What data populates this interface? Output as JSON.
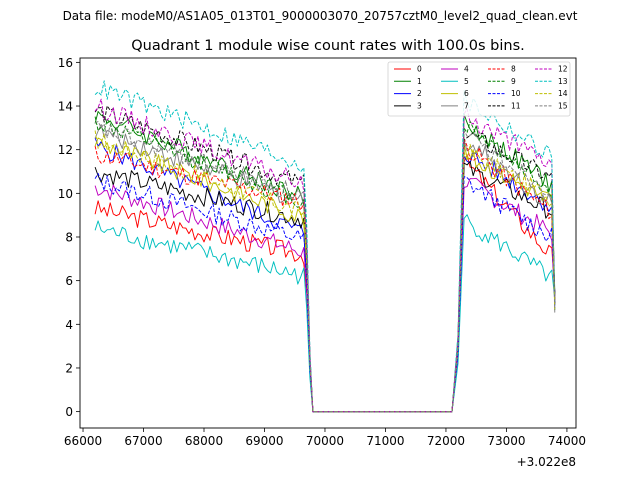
{
  "chart_data": {
    "type": "line",
    "suptitle": "Data file: modeM0/AS1A05_013T01_9000003070_20757cztM0_level2_quad_clean.evt",
    "title": "Quadrant 1 module wise count rates with 100.0s bins.",
    "xlabel": "",
    "ylabel": "",
    "offset_label": "+3.022e8",
    "xlim": [
      65950,
      74150
    ],
    "ylim": [
      -0.75,
      16.2
    ],
    "xticks": [
      66000,
      67000,
      68000,
      69000,
      70000,
      71000,
      72000,
      73000,
      74000
    ],
    "yticks": [
      0,
      2,
      4,
      6,
      8,
      10,
      12,
      14,
      16
    ],
    "legend_position": "upper-right",
    "series": [
      {
        "name": "0",
        "color": "#ff0000",
        "dashed": false,
        "seg1_start": 9.3,
        "seg1_end": 7.2,
        "seg2_start": 11.5,
        "seg2_end": 7.0
      },
      {
        "name": "1",
        "color": "#008000",
        "dashed": false,
        "seg1_start": 13.6,
        "seg1_end": 9.8,
        "seg2_start": 13.3,
        "seg2_end": 10.3
      },
      {
        "name": "2",
        "color": "#0000ff",
        "dashed": false,
        "seg1_start": 12.2,
        "seg1_end": 8.2,
        "seg2_start": 11.9,
        "seg2_end": 9.3
      },
      {
        "name": "3",
        "color": "#000000",
        "dashed": false,
        "seg1_start": 11.0,
        "seg1_end": 8.8,
        "seg2_start": 11.2,
        "seg2_end": 9.1
      },
      {
        "name": "4",
        "color": "#bf00bf",
        "dashed": false,
        "seg1_start": 10.3,
        "seg1_end": 7.3,
        "seg2_start": 10.6,
        "seg2_end": 8.1
      },
      {
        "name": "5",
        "color": "#00bfbf",
        "dashed": false,
        "seg1_start": 8.4,
        "seg1_end": 6.2,
        "seg2_start": 8.8,
        "seg2_end": 6.0
      },
      {
        "name": "6",
        "color": "#bfbf00",
        "dashed": false,
        "seg1_start": 12.4,
        "seg1_end": 8.9,
        "seg2_start": 11.8,
        "seg2_end": 9.6
      },
      {
        "name": "7",
        "color": "#808080",
        "dashed": false,
        "seg1_start": 12.9,
        "seg1_end": 9.6,
        "seg2_start": 12.5,
        "seg2_end": 9.4
      },
      {
        "name": "8",
        "color": "#ff0000",
        "dashed": true,
        "seg1_start": 11.8,
        "seg1_end": 9.6,
        "seg2_start": 12.2,
        "seg2_end": 9.0
      },
      {
        "name": "9",
        "color": "#008000",
        "dashed": true,
        "seg1_start": 13.3,
        "seg1_end": 9.6,
        "seg2_start": 13.2,
        "seg2_end": 10.0
      },
      {
        "name": "10",
        "color": "#0000ff",
        "dashed": true,
        "seg1_start": 10.6,
        "seg1_end": 7.9,
        "seg2_start": 10.6,
        "seg2_end": 7.9
      },
      {
        "name": "11",
        "color": "#000000",
        "dashed": true,
        "seg1_start": 13.8,
        "seg1_end": 10.4,
        "seg2_start": 12.8,
        "seg2_end": 10.6
      },
      {
        "name": "12",
        "color": "#bf00bf",
        "dashed": true,
        "seg1_start": 14.0,
        "seg1_end": 10.4,
        "seg2_start": 13.6,
        "seg2_end": 11.2
      },
      {
        "name": "13",
        "color": "#00bfbf",
        "dashed": true,
        "seg1_start": 14.9,
        "seg1_end": 11.3,
        "seg2_start": 14.3,
        "seg2_end": 11.6
      },
      {
        "name": "14",
        "color": "#bfbf00",
        "dashed": true,
        "seg1_start": 12.5,
        "seg1_end": 9.1,
        "seg2_start": 12.0,
        "seg2_end": 9.7
      },
      {
        "name": "15",
        "color": "#808080",
        "dashed": true,
        "seg1_start": 13.0,
        "seg1_end": 9.9,
        "seg2_start": 12.6,
        "seg2_end": 10.1
      }
    ],
    "segments": {
      "seg1_x": [
        66200,
        69650
      ],
      "drop_x": 69800,
      "zero_x": [
        69800,
        72100
      ],
      "seg2_x": [
        72300,
        73800
      ],
      "step": 50
    }
  }
}
